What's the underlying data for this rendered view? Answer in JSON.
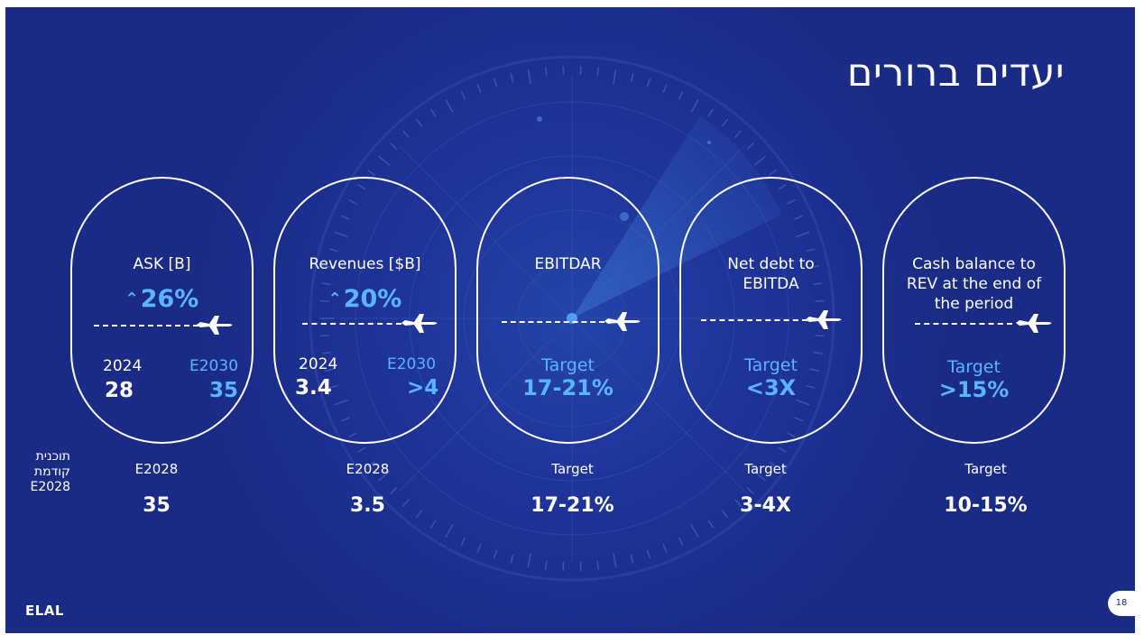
{
  "title": "יעדים ברורים",
  "cards": [
    {
      "label": "ASK [B]",
      "growth": "26%",
      "growth_icon": "double-chevron-up-icon",
      "year_left": "2024",
      "year_right": "E2030",
      "value_left": "28",
      "value_right": "35",
      "bottom_label": "E2028",
      "bottom_value": "35"
    },
    {
      "label": "Revenues [$B]",
      "growth": "20%",
      "growth_icon": "double-chevron-up-icon",
      "year_left": "2024",
      "year_right": "E2030",
      "value_left": "3.4",
      "value_right": ">4",
      "bottom_label": "E2028",
      "bottom_value": "3.5"
    },
    {
      "label": "EBITDAR",
      "target_label": "Target",
      "target_value": "17-21%",
      "bottom_label": "Target",
      "bottom_value": "17-21%"
    },
    {
      "label_line1": "Net debt to",
      "label_line2": "EBITDA",
      "target_label": "Target",
      "target_value": "<3X",
      "bottom_label": "Target",
      "bottom_value": "3-4X"
    },
    {
      "label_line1": "Cash balance to",
      "label_line2": "REV at the end of",
      "label_line3": "the period",
      "target_label": "Target",
      "target_value": ">15%",
      "bottom_label": "Target",
      "bottom_value": "10-15%"
    }
  ],
  "previous_plan": {
    "line1": "תוכנית",
    "line2": "קודמת",
    "line3": "E2028"
  },
  "logo_text": "ELAL",
  "page_number": "18",
  "colors": {
    "background": "#1a2b85",
    "accent": "#5ab4ff",
    "text": "#ffffff"
  },
  "icons": {
    "plane": "airplane-icon"
  }
}
